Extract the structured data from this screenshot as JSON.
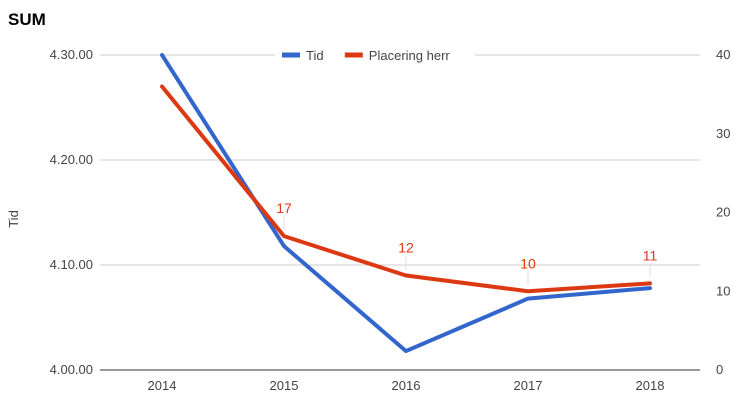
{
  "chart_data": {
    "type": "line",
    "title": "SUM",
    "categories": [
      "2014",
      "2015",
      "2016",
      "2017",
      "2018"
    ],
    "y_left": {
      "label": "Tid",
      "min": 4.0,
      "max": 4.3,
      "ticks": [
        4.0,
        4.1,
        4.2,
        4.3
      ],
      "tick_labels": [
        "4.00.00",
        "4.10.00",
        "4.20.00",
        "4.30.00"
      ]
    },
    "y_right": {
      "label": "",
      "min": 0,
      "max": 40,
      "ticks": [
        0,
        10,
        20,
        30,
        40
      ],
      "tick_labels": [
        "0",
        "10",
        "20",
        "30",
        "40"
      ]
    },
    "series": [
      {
        "name": "Tid",
        "axis": "left",
        "color": "#3366cc",
        "values": [
          4.3,
          4.118,
          4.018,
          4.068,
          4.078
        ],
        "labels": []
      },
      {
        "name": "Placering herr",
        "axis": "right",
        "color": "#dc3912",
        "values": [
          36,
          17,
          12,
          10,
          11
        ],
        "labels": [
          "",
          "17",
          "12",
          "10",
          "11"
        ]
      }
    ],
    "legend_position": "top",
    "grid": true
  }
}
